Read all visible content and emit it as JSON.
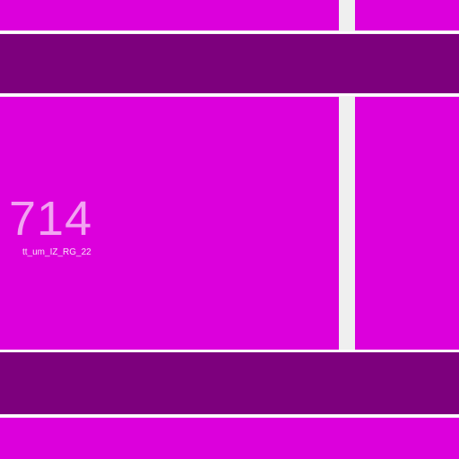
{
  "colors": {
    "tile_primary": "#dc00dc",
    "band_dark": "#7d007d",
    "rule": "#ffffff",
    "gap": "#efefef",
    "number_text": "#f2a3f2",
    "caption_text": "#fbe3fb"
  },
  "tile": {
    "value": "714",
    "caption": "tt_um_IZ_RG_22"
  }
}
